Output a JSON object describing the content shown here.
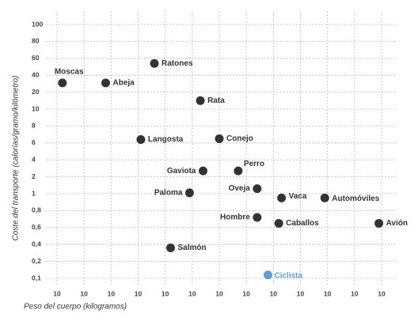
{
  "chart_data": {
    "type": "scatter",
    "y_label": "Coste del transporte (calorías/gramo/kilómetro)",
    "x_label": "Peso del cuerpo (kilogramos)",
    "point_labels": [
      "Moscas",
      "Abeja",
      "Ratones",
      "Rata",
      "Langosta",
      "Conejo",
      "Gaviota",
      "Perro",
      "Paloma",
      "Oveja",
      "Vaca",
      "Automóviles",
      "Hombre",
      "Caballos",
      "Avión",
      "Salmón",
      "Ciclista"
    ],
    "x": [
      -5.8,
      -4.2,
      -2.4,
      -0.7,
      -2.9,
      0,
      -0.6,
      0.7,
      -1.1,
      1.4,
      2.3,
      3.9,
      1.4,
      2.2,
      5.9,
      -1.8,
      1.8
    ],
    "values": [
      31,
      31,
      54,
      15,
      6.4,
      6.5,
      2.7,
      2.7,
      1.05,
      1.3,
      0.95,
      0.95,
      0.72,
      0.65,
      0.65,
      0.36,
      0.12
    ],
    "colors": [
      "#333333",
      "#333333",
      "#333333",
      "#333333",
      "#333333",
      "#333333",
      "#333333",
      "#333333",
      "#333333",
      "#333333",
      "#333333",
      "#333333",
      "#333333",
      "#333333",
      "#333333",
      "#333333",
      "#5aa0d8"
    ],
    "label_colors": [
      "#333333",
      "#333333",
      "#333333",
      "#333333",
      "#333333",
      "#333333",
      "#333333",
      "#333333",
      "#333333",
      "#333333",
      "#333333",
      "#333333",
      "#333333",
      "#333333",
      "#333333",
      "#333333",
      "#5aa0d8"
    ],
    "xlim": [
      -6,
      6
    ],
    "xticks": [
      {
        "value": -6,
        "label": "10"
      },
      {
        "value": -5,
        "label": "10"
      },
      {
        "value": -4,
        "label": "10"
      },
      {
        "value": -3,
        "label": "10"
      },
      {
        "value": -2,
        "label": "10"
      },
      {
        "value": -1,
        "label": "10"
      },
      {
        "value": 0,
        "label": "10"
      },
      {
        "value": 1,
        "label": "10"
      },
      {
        "value": 2,
        "label": "10"
      },
      {
        "value": 3,
        "label": "10"
      },
      {
        "value": 4,
        "label": "10"
      },
      {
        "value": 5,
        "label": "10"
      },
      {
        "value": 6,
        "label": "10"
      }
    ],
    "ylim": [
      100,
      0.1
    ],
    "yticks": [
      100,
      80,
      60,
      40,
      20,
      10,
      8,
      6,
      4,
      2,
      1,
      {
        "value": 0.8,
        "label": "0,8"
      },
      {
        "value": 0.6,
        "label": "0,6"
      },
      {
        "value": 0.4,
        "label": "0,4"
      },
      {
        "value": 0.2,
        "label": "0,2"
      },
      {
        "value": 0.1,
        "label": "0,1"
      }
    ],
    "grid": true
  }
}
